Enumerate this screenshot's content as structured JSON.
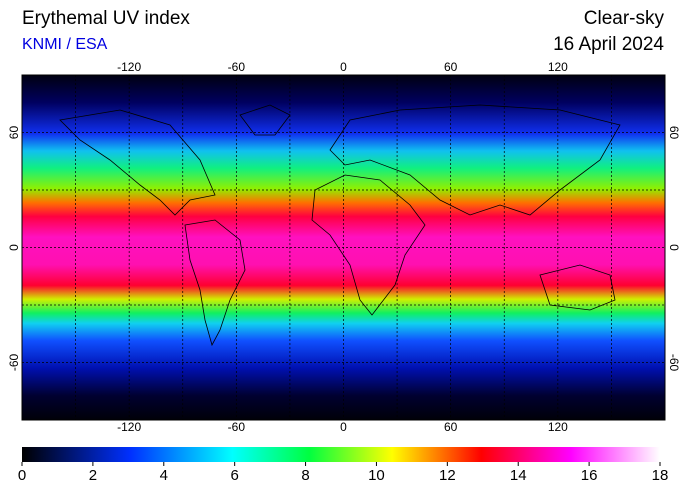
{
  "title": "Erythemal UV index",
  "source": "KNMI / ESA",
  "sky": "Clear-sky",
  "date": "16 April 2024",
  "map": {
    "lon_range": [
      -180,
      180
    ],
    "lat_range": [
      90,
      -90
    ],
    "grid_step": 30,
    "lon_ticks": [
      -120,
      -60,
      0,
      60,
      120
    ],
    "lat_ticks": [
      60,
      0,
      -60
    ]
  },
  "colorbar": {
    "range": [
      0,
      18
    ],
    "ticks": [
      0,
      2,
      4,
      6,
      8,
      10,
      12,
      14,
      16,
      18
    ]
  }
}
